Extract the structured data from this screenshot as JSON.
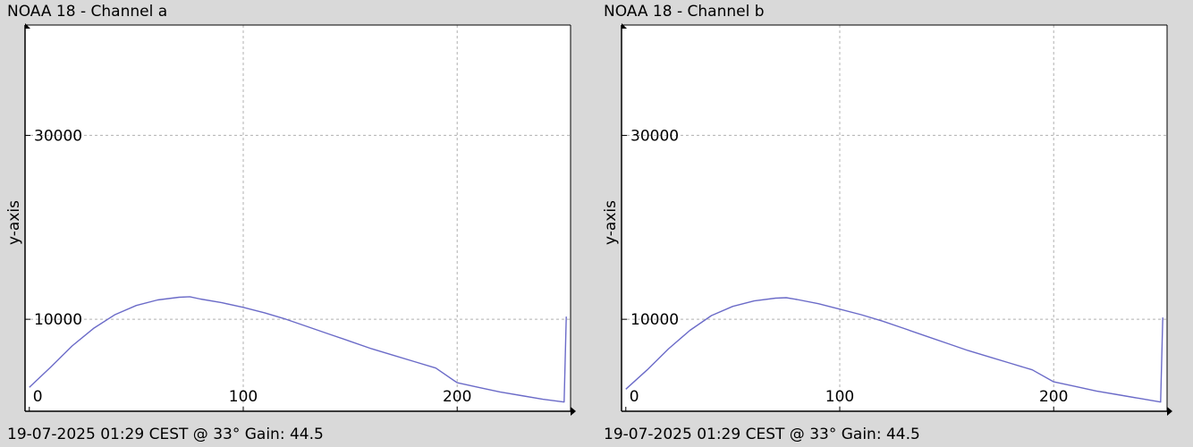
{
  "charts": [
    {
      "title": "NOAA 18 - Channel a",
      "footer": "19-07-2025 01:29 CEST @ 33° Gain: 44.5"
    },
    {
      "title": "NOAA 18 - Channel b",
      "footer": "19-07-2025 01:29 CEST @ 33° Gain: 44.5"
    }
  ],
  "chart_data": [
    {
      "type": "line",
      "title": "",
      "xlabel": "",
      "ylabel": "y-axis",
      "xlim": [
        -2,
        253
      ],
      "ylim": [
        0,
        42000
      ],
      "x_ticks": [
        0,
        100,
        200
      ],
      "y_ticks": [
        10000,
        30000
      ],
      "grid": true,
      "line_color": "#6b6bc8",
      "x": [
        0,
        10,
        20,
        30,
        40,
        50,
        60,
        70,
        75,
        80,
        90,
        100,
        110,
        120,
        130,
        140,
        150,
        160,
        170,
        180,
        190,
        200,
        210,
        220,
        230,
        240,
        250,
        251
      ],
      "y": [
        2600,
        4800,
        7100,
        9000,
        10500,
        11500,
        12100,
        12400,
        12450,
        12200,
        11800,
        11300,
        10700,
        10000,
        9200,
        8400,
        7600,
        6800,
        6100,
        5400,
        4700,
        3100,
        2600,
        2100,
        1700,
        1300,
        1000,
        10300
      ]
    },
    {
      "type": "line",
      "title": "",
      "xlabel": "",
      "ylabel": "y-axis",
      "xlim": [
        -2,
        253
      ],
      "ylim": [
        0,
        42000
      ],
      "x_ticks": [
        0,
        100,
        200
      ],
      "y_ticks": [
        10000,
        30000
      ],
      "grid": true,
      "line_color": "#6b6bc8",
      "x": [
        0,
        10,
        20,
        30,
        40,
        50,
        60,
        70,
        75,
        80,
        90,
        100,
        110,
        120,
        130,
        140,
        150,
        160,
        170,
        180,
        190,
        200,
        210,
        220,
        230,
        240,
        250,
        251
      ],
      "y": [
        2400,
        4500,
        6800,
        8800,
        10400,
        11400,
        12000,
        12300,
        12350,
        12150,
        11700,
        11100,
        10500,
        9800,
        9000,
        8200,
        7400,
        6600,
        5900,
        5200,
        4500,
        3200,
        2700,
        2200,
        1800,
        1400,
        1000,
        10200
      ]
    }
  ]
}
